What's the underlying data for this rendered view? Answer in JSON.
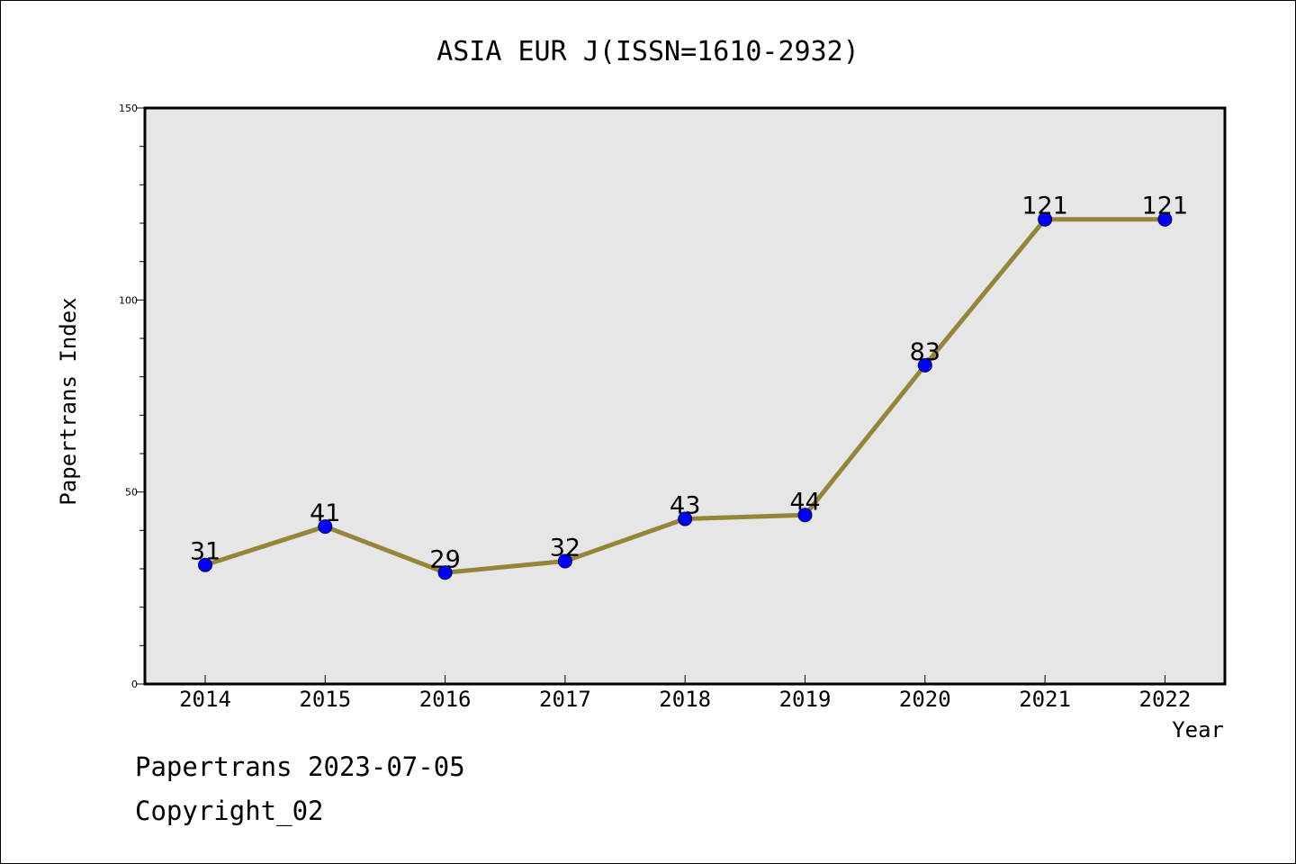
{
  "chart_data": {
    "type": "line",
    "title": "ASIA EUR J(ISSN=1610-2932)",
    "xlabel": "Year",
    "ylabel": "Papertrans Index",
    "categories": [
      "2014",
      "2015",
      "2016",
      "2017",
      "2018",
      "2019",
      "2020",
      "2021",
      "2022"
    ],
    "series": [
      {
        "values": [
          31,
          41,
          29,
          32,
          43,
          44,
          83,
          121,
          121
        ]
      }
    ],
    "data_labels": [
      "31",
      "41",
      "29",
      "32",
      "43",
      "44",
      "83",
      "121",
      "121"
    ],
    "ylim": [
      0,
      150
    ],
    "yticks": [
      "0",
      "50",
      "100",
      "150"
    ],
    "grid": false,
    "colors": {
      "line": "#948539",
      "marker": "#0000ff",
      "plot_background": "#e6e6e6"
    }
  },
  "footer": {
    "text": "Papertrans 2023-07-05",
    "copyright": "Copyright_02"
  }
}
